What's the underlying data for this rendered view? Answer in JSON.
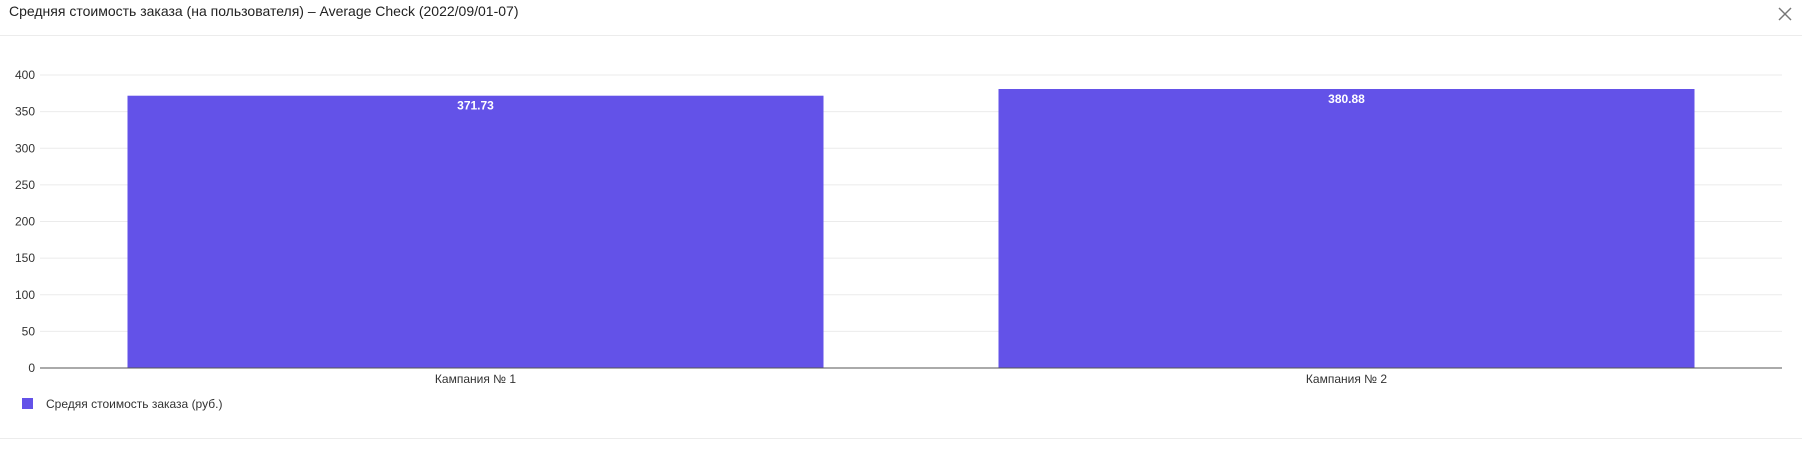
{
  "header": {
    "title": "Средняя стоимость заказа (на пользователя) – Average Check (2022/09/01-07)",
    "close_icon": "close-icon"
  },
  "colors": {
    "bar": "#6352e8",
    "grid": "#ebebeb",
    "axis": "#555555"
  },
  "chart_data": {
    "type": "bar",
    "categories": [
      "Кампания № 1",
      "Кампания № 2"
    ],
    "series": [
      {
        "name": "Средяя стоимость заказа (руб.)",
        "values": [
          371.73,
          380.88
        ]
      }
    ],
    "data_labels": [
      "371.73",
      "380.88"
    ],
    "yticks": [
      0,
      50,
      100,
      150,
      200,
      250,
      300,
      350,
      400
    ],
    "ylim": [
      0,
      400
    ],
    "grid": true,
    "legend": "bottom-left"
  }
}
